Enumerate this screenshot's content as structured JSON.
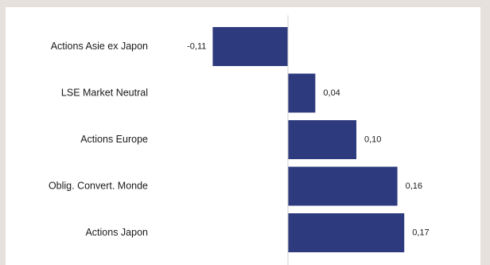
{
  "chart_data": {
    "type": "bar",
    "orientation": "horizontal",
    "categories": [
      "Actions Asie ex Japon",
      "LSE Market Neutral",
      "Actions Europe",
      "Oblig. Convert. Monde",
      "Actions Japon"
    ],
    "values": [
      -0.11,
      0.04,
      0.1,
      0.16,
      0.17
    ],
    "value_labels": [
      "-0,11",
      "0,04",
      "0,10",
      "0,16",
      "0,17"
    ],
    "bar_color": "#2d3a7e",
    "axis_color": "#cfcfcf",
    "grid": false,
    "legend": "none"
  }
}
